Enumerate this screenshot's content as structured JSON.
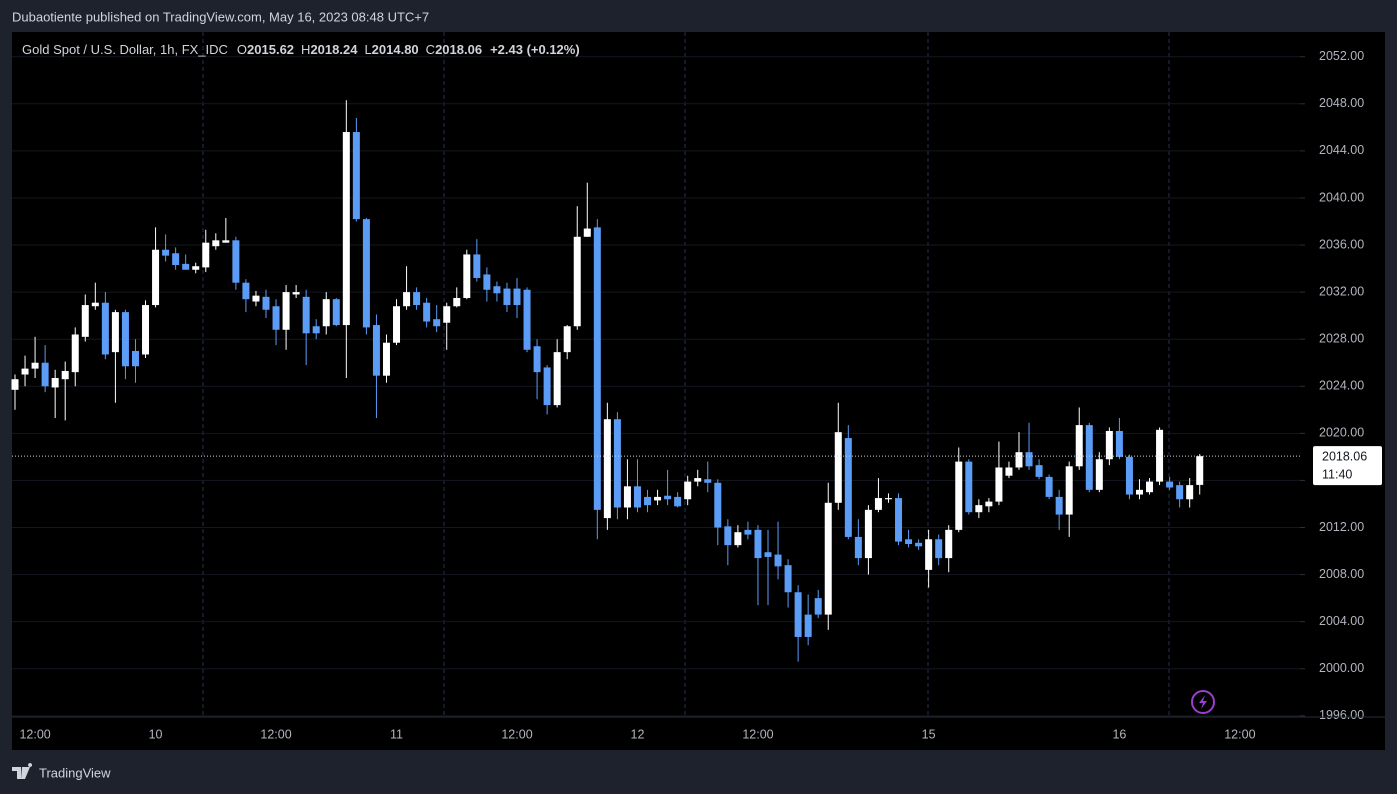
{
  "header": {
    "published": "Dubaotiente published on TradingView.com, May 16, 2023 08:48 UTC+7"
  },
  "footer": {
    "brand": "TradingView"
  },
  "chart_data": {
    "type": "candlestick",
    "title": "Gold Spot / U.S. Dollar, 1h, FX_IDC",
    "ohlc_legend": [
      {
        "key": "O",
        "value": "2015.62"
      },
      {
        "key": "H",
        "value": "2018.24"
      },
      {
        "key": "L",
        "value": "2014.80"
      },
      {
        "key": "C",
        "value": "2018.06"
      }
    ],
    "change": "+2.43 (+0.12%)",
    "last_price": 2018.06,
    "countdown": "11:40",
    "up_color": "#ffffff",
    "down_color": "#5b9cf6",
    "grid": true,
    "ylim": [
      1995.9,
      2054.1
    ],
    "yticks": [
      {
        "value": 1996,
        "label": "1996.00"
      },
      {
        "value": 2000,
        "label": "2000.00"
      },
      {
        "value": 2004,
        "label": "2004.00"
      },
      {
        "value": 2008,
        "label": "2008.00"
      },
      {
        "value": 2012,
        "label": "2012.00"
      },
      {
        "value": 2016,
        "label": "2016.00"
      },
      {
        "value": 2020,
        "label": "2020.00"
      },
      {
        "value": 2024,
        "label": "2024.00"
      },
      {
        "value": 2028,
        "label": "2028.00"
      },
      {
        "value": 2032,
        "label": "2032.00"
      },
      {
        "value": 2036,
        "label": "2036.00"
      },
      {
        "value": 2040,
        "label": "2040.00"
      },
      {
        "value": 2044,
        "label": "2044.00"
      },
      {
        "value": 2048,
        "label": "2048.00"
      },
      {
        "value": 2052,
        "label": "2052.00"
      }
    ],
    "categories": [
      null,
      null,
      "12:00",
      null,
      null,
      null,
      null,
      null,
      null,
      null,
      null,
      null,
      null,
      null,
      "10",
      null,
      null,
      null,
      null,
      null,
      null,
      null,
      null,
      null,
      null,
      null,
      "12:00",
      null,
      null,
      null,
      null,
      null,
      null,
      null,
      null,
      null,
      null,
      null,
      "11",
      null,
      null,
      null,
      null,
      null,
      null,
      null,
      null,
      null,
      null,
      null,
      "12:00",
      null,
      null,
      null,
      null,
      null,
      null,
      null,
      null,
      null,
      null,
      null,
      "12",
      null,
      null,
      null,
      null,
      null,
      null,
      null,
      null,
      null,
      null,
      null,
      "12:00",
      null,
      null,
      null,
      null,
      null,
      null,
      null,
      null,
      null,
      null,
      null,
      null,
      null,
      null,
      null,
      null,
      "15",
      null,
      null,
      null,
      null,
      null,
      null,
      null,
      null,
      null,
      null,
      null,
      null,
      null,
      null,
      null,
      null,
      null,
      null,
      "16",
      null,
      null,
      null,
      null,
      null,
      null,
      null,
      null,
      null,
      null,
      null,
      "12:00"
    ],
    "open": [
      2023.7,
      2025.0,
      2025.5,
      2026.0,
      2023.9,
      2024.6,
      2025.2,
      2028.2,
      2030.8,
      2031.1,
      2026.9,
      2030.3,
      2027.0,
      2026.7,
      2030.9,
      2035.6,
      2035.3,
      2034.4,
      2033.9,
      2034.1,
      2035.9,
      2036.2,
      2036.4,
      2032.8,
      2031.2,
      2031.6,
      2030.8,
      2028.8,
      2031.8,
      2031.6,
      2029.1,
      2029.1,
      2031.4,
      2029.2,
      2045.6,
      2038.2,
      2029.2,
      2024.9,
      2027.7,
      2030.8,
      2032.0,
      2031.1,
      2029.7,
      2029.4,
      2030.8,
      2031.5,
      2035.2,
      2033.5,
      2032.5,
      2032.3,
      2032.3,
      2032.2,
      2027.4,
      2025.6,
      2022.4,
      2026.9,
      2029.1,
      2036.7,
      2037.5,
      2012.8,
      2021.2,
      2013.7,
      2015.5,
      2014.6,
      2014.3,
      2014.7,
      2014.6,
      2014.4,
      2015.9,
      2016.1,
      2015.8,
      2012.1,
      2010.5,
      2011.8,
      2011.8,
      2009.9,
      2009.7,
      2008.8,
      2006.5,
      2004.6,
      2006.0,
      2004.6,
      2014.1,
      2019.6,
      2011.2,
      2009.4,
      2013.5,
      2014.4,
      2014.5,
      2011.0,
      2010.7,
      2008.4,
      2011.0,
      2009.4,
      2011.8,
      2017.6,
      2013.3,
      2013.8,
      2014.2,
      2016.4,
      2017.1,
      2018.4,
      2017.3,
      2016.3,
      2014.6,
      2013.1,
      2017.2,
      2020.7,
      2015.2,
      2017.8,
      2020.2,
      2018.0,
      2014.8,
      2015.0,
      2015.9,
      2015.9,
      2015.6,
      2014.4,
      2015.62,
      null,
      null,
      null,
      null
    ],
    "high": [
      2025.0,
      2026.6,
      2028.2,
      2027.5,
      2025.4,
      2026.1,
      2029.0,
      2031.8,
      2032.8,
      2032.0,
      2030.5,
      2030.5,
      2028.0,
      2031.3,
      2037.5,
      2036.9,
      2035.8,
      2035.2,
      2034.5,
      2037.3,
      2037.0,
      2038.3,
      2036.7,
      2033.1,
      2032.1,
      2032.2,
      2031.4,
      2032.6,
      2032.6,
      2032.2,
      2029.7,
      2032.0,
      2031.5,
      2048.3,
      2046.8,
      2038.3,
      2030.1,
      2028.4,
      2031.4,
      2034.2,
      2032.4,
      2031.5,
      2030.9,
      2031.1,
      2032.4,
      2035.6,
      2036.5,
      2034.1,
      2032.9,
      2032.8,
      2033.2,
      2032.4,
      2028.0,
      2025.8,
      2028.0,
      2029.2,
      2039.3,
      2041.3,
      2038.2,
      2022.6,
      2021.8,
      2017.8,
      2017.8,
      2015.2,
      2015.2,
      2016.9,
      2015.0,
      2016.4,
      2016.9,
      2017.6,
      2016.1,
      2012.7,
      2012.2,
      2012.5,
      2012.2,
      2011.8,
      2012.5,
      2009.3,
      2007.1,
      2006.3,
      2006.7,
      2015.8,
      2022.6,
      2020.7,
      2012.7,
      2013.9,
      2016.2,
      2014.9,
      2014.9,
      2011.8,
      2011.0,
      2011.8,
      2011.4,
      2012.2,
      2018.8,
      2017.8,
      2014.4,
      2014.5,
      2019.3,
      2017.6,
      2020.1,
      2020.9,
      2017.8,
      2016.5,
      2015.2,
      2017.6,
      2022.2,
      2020.9,
      2018.4,
      2020.5,
      2021.3,
      2018.2,
      2016.1,
      2016.2,
      2020.5,
      2016.3,
      2015.9,
      2016.2,
      2018.24,
      null,
      null,
      null,
      null
    ],
    "low": [
      2022.0,
      2024.0,
      2024.7,
      2023.5,
      2021.3,
      2021.1,
      2024.0,
      2027.8,
      2030.5,
      2026.3,
      2022.6,
      2024.6,
      2024.3,
      2026.4,
      2030.7,
      2034.6,
      2033.9,
      2033.9,
      2033.6,
      2033.7,
      2035.6,
      2036.2,
      2032.2,
      2030.3,
      2030.8,
      2029.8,
      2027.5,
      2027.1,
      2031.5,
      2025.8,
      2028.0,
      2028.4,
      2029.1,
      2024.7,
      2038.0,
      2028.4,
      2021.3,
      2024.3,
      2027.5,
      2030.5,
      2030.5,
      2029.0,
      2028.6,
      2027.1,
      2030.7,
      2031.4,
      2032.9,
      2031.2,
      2031.2,
      2030.3,
      2029.8,
      2026.9,
      2022.9,
      2021.6,
      2022.2,
      2026.3,
      2028.8,
      2036.7,
      2011.0,
      2011.8,
      2012.7,
      2012.7,
      2013.3,
      2013.3,
      2013.9,
      2013.9,
      2013.7,
      2013.9,
      2015.5,
      2015.0,
      2010.5,
      2008.8,
      2010.3,
      2011.0,
      2005.4,
      2005.4,
      2007.6,
      2005.2,
      2000.6,
      2002.0,
      2004.3,
      2003.3,
      2013.5,
      2011.0,
      2008.8,
      2008.0,
      2013.3,
      2014.1,
      2010.5,
      2010.3,
      2010.1,
      2006.9,
      2008.8,
      2008.2,
      2011.6,
      2013.1,
      2012.8,
      2013.3,
      2013.9,
      2016.2,
      2016.9,
      2016.9,
      2016.1,
      2014.4,
      2011.8,
      2011.2,
      2016.9,
      2015.0,
      2015.0,
      2017.3,
      2017.8,
      2014.4,
      2014.4,
      2014.8,
      2015.6,
      2015.2,
      2013.7,
      2013.7,
      2014.8,
      null,
      null,
      null,
      null
    ],
    "close": [
      2024.6,
      2025.5,
      2026.0,
      2024.0,
      2024.7,
      2025.3,
      2028.4,
      2030.9,
      2031.1,
      2026.7,
      2030.3,
      2025.7,
      2025.7,
      2030.9,
      2035.6,
      2035.1,
      2034.3,
      2033.9,
      2034.2,
      2036.2,
      2036.4,
      2036.4,
      2032.8,
      2031.4,
      2031.7,
      2030.5,
      2028.8,
      2032.0,
      2032.0,
      2028.5,
      2028.5,
      2031.4,
      2029.2,
      2045.6,
      2038.2,
      2029.0,
      2024.9,
      2027.7,
      2030.8,
      2032.0,
      2030.9,
      2029.5,
      2029.1,
      2030.8,
      2031.5,
      2035.2,
      2033.2,
      2032.2,
      2031.9,
      2030.9,
      2030.9,
      2027.1,
      2025.2,
      2022.4,
      2026.9,
      2029.1,
      2036.7,
      2037.4,
      2013.5,
      2021.2,
      2013.7,
      2015.5,
      2013.7,
      2013.9,
      2014.6,
      2014.4,
      2013.8,
      2015.9,
      2016.2,
      2015.8,
      2012.0,
      2010.5,
      2011.6,
      2011.4,
      2009.4,
      2009.5,
      2008.7,
      2006.5,
      2002.7,
      2002.7,
      2004.6,
      2014.1,
      2020.1,
      2011.2,
      2009.4,
      2013.5,
      2014.5,
      2014.5,
      2010.8,
      2010.6,
      2010.4,
      2011.0,
      2009.4,
      2011.8,
      2017.6,
      2013.3,
      2013.9,
      2014.2,
      2017.1,
      2017.1,
      2018.4,
      2017.2,
      2016.3,
      2014.6,
      2013.1,
      2017.2,
      2020.7,
      2015.2,
      2017.8,
      2020.2,
      2018.0,
      2014.8,
      2015.2,
      2015.9,
      2020.3,
      2015.4,
      2014.4,
      2015.6,
      2018.06,
      null,
      null,
      null,
      null
    ]
  }
}
